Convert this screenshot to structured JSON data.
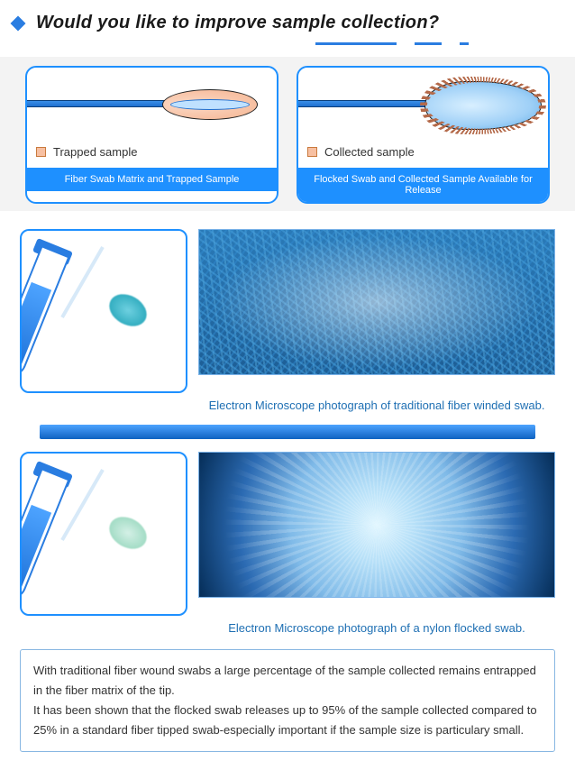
{
  "heading": "Would you like to improve sample collection?",
  "panels": {
    "left": {
      "legend": "Trapped sample",
      "caption": "Fiber Swab Matrix and Trapped Sample"
    },
    "right": {
      "legend": "Collected sample",
      "caption": "Flocked Swab and Collected Sample Available for Release"
    }
  },
  "micro": {
    "fiber_caption": "Electron Microscope photograph of traditional fiber winded swab.",
    "flock_caption": "Electron Microscope photograph of a nylon flocked swab."
  },
  "info_text": "With traditional fiber wound swabs a large percentage of the sample collected remains entrapped in the fiber matrix of the tip.\nIt has been shown that the flocked swab releases up to 95% of the sample collected compared to 25% in a standard fiber tipped swab-especially important if the sample size is particulary small.",
  "colors": {
    "accent": "#1e90ff",
    "heading": "#1a1a1a",
    "caption_link": "#1e6fb3",
    "legend_box_fill": "#f7c0a2",
    "legend_box_border": "#c97a3e"
  }
}
